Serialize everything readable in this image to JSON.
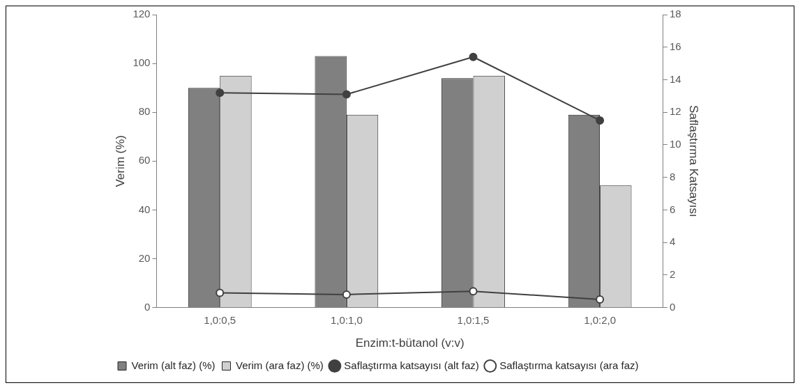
{
  "chart_data": {
    "type": "bar",
    "xlabel": "Enzim:t-bütanol (v:v)",
    "ylabel": "Verim (%)",
    "y2label": "Saflaştırma Katsayısı",
    "categories": [
      "1,0:0,5",
      "1,0:1,0",
      "1,0:1,5",
      "1,0:2,0"
    ],
    "series": [
      {
        "name": "Verim (alt faz) (%)",
        "color": "#808080",
        "values": [
          90,
          103,
          94,
          79
        ]
      },
      {
        "name": "Verim (ara faz) (%)",
        "color": "#d0d0d0",
        "values": [
          95,
          79,
          95,
          50
        ]
      },
      {
        "name": "Saflaştırma katsayısı (alt faz)",
        "type": "line",
        "axis": "y2",
        "color": "#404040",
        "values": [
          13.2,
          13.1,
          15.4,
          11.5
        ]
      },
      {
        "name": "Saflaştırma katsayısı (ara faz)",
        "type": "line",
        "axis": "y2",
        "color": "#404040",
        "values": [
          0.9,
          0.8,
          1.0,
          0.5
        ]
      }
    ],
    "ylim": [
      0,
      120
    ],
    "yticks": [
      0,
      20,
      40,
      60,
      80,
      100,
      120
    ],
    "y2lim": [
      0,
      18
    ],
    "y2ticks": [
      0,
      2,
      4,
      6,
      8,
      10,
      12,
      14,
      16,
      18
    ],
    "grid": false,
    "legend": "bottom",
    "marker": "circle",
    "line_style": "solid"
  }
}
